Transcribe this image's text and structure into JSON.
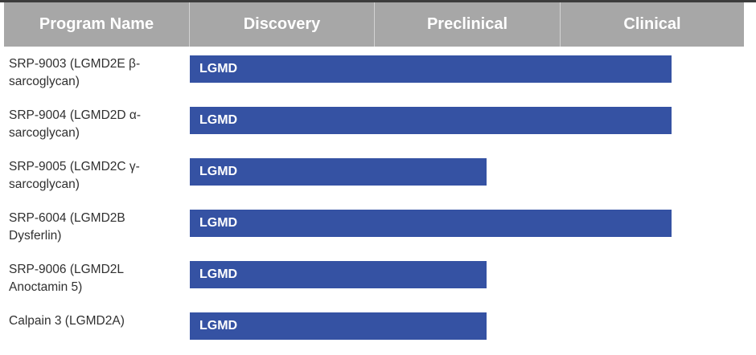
{
  "chart_data": {
    "type": "bar",
    "columns": [
      "Program Name",
      "Discovery",
      "Preclinical",
      "Clinical"
    ],
    "stages": [
      "Discovery",
      "Preclinical",
      "Clinical"
    ],
    "rows": [
      {
        "program": "SRP-9003 (LGMD2E β-sarcoglycan)",
        "label": "LGMD",
        "progress_stages": 2.6
      },
      {
        "program": "SRP-9004 (LGMD2D α-sarcoglycan)",
        "label": "LGMD",
        "progress_stages": 2.6
      },
      {
        "program": "SRP-9005 (LGMD2C γ-sarcoglycan)",
        "label": "LGMD",
        "progress_stages": 1.6
      },
      {
        "program": "SRP-6004 (LGMD2B Dysferlin)",
        "label": "LGMD",
        "progress_stages": 2.6
      },
      {
        "program": "SRP-9006 (LGMD2L Anoctamin 5)",
        "label": "LGMD",
        "progress_stages": 1.6
      },
      {
        "program": "Calpain 3 (LGMD2A)",
        "label": "LGMD",
        "progress_stages": 1.6
      }
    ],
    "bar_color": "#3552a3",
    "header_color": "#a7a7a7"
  }
}
